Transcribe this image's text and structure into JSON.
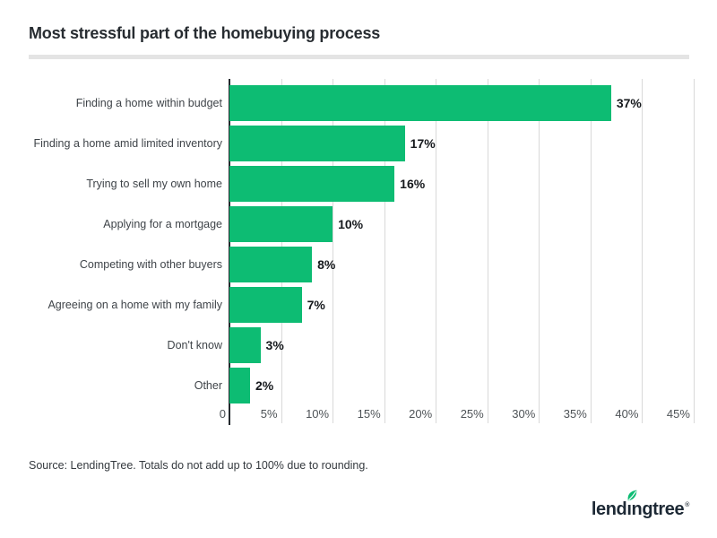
{
  "title": "Most stressful part of the homebuying process",
  "source_note": "Source: LendingTree. Totals do not add up to 100% due to rounding.",
  "logo": {
    "text": "lendingtree",
    "pre": "lend",
    "dotless_i": "ı",
    "post": "ngtree",
    "reg": "®",
    "leaf_icon": "leaf-icon"
  },
  "colors": {
    "bar_green": "#0dbc73",
    "axis": "#24292e",
    "gridline": "#d9d9d9",
    "divider": "#e4e4e4",
    "title_text": "#272c31",
    "category_text": "#3f4449",
    "value_text": "#16191d",
    "tick_text": "#4d5256",
    "source_text": "#34393e",
    "logo_navy": "#1d2935",
    "leaf_green": "#0dbc73"
  },
  "chart_data": {
    "type": "bar",
    "orientation": "horizontal",
    "title": "Most stressful part of the homebuying process",
    "categories": [
      "Finding a home within budget",
      "Finding a home amid limited inventory",
      "Trying to sell my own home",
      "Applying for a mortgage",
      "Competing with other buyers",
      "Agreeing on a home with my family",
      "Don't know",
      "Other"
    ],
    "values": [
      37,
      17,
      16,
      10,
      8,
      7,
      3,
      2
    ],
    "value_labels": [
      "37%",
      "17%",
      "16%",
      "10%",
      "8%",
      "7%",
      "3%",
      "2%"
    ],
    "x_ticks": [
      "0",
      "5%",
      "10%",
      "15%",
      "20%",
      "25%",
      "30%",
      "35%",
      "40%",
      "45%"
    ],
    "x_tick_values": [
      0,
      5,
      10,
      15,
      20,
      25,
      30,
      35,
      40,
      45
    ],
    "xlim": [
      0,
      45.7
    ],
    "xlabel": "",
    "ylabel": "",
    "grid": "vertical-only",
    "legend": "none",
    "bar_color": "#0dbc73"
  }
}
